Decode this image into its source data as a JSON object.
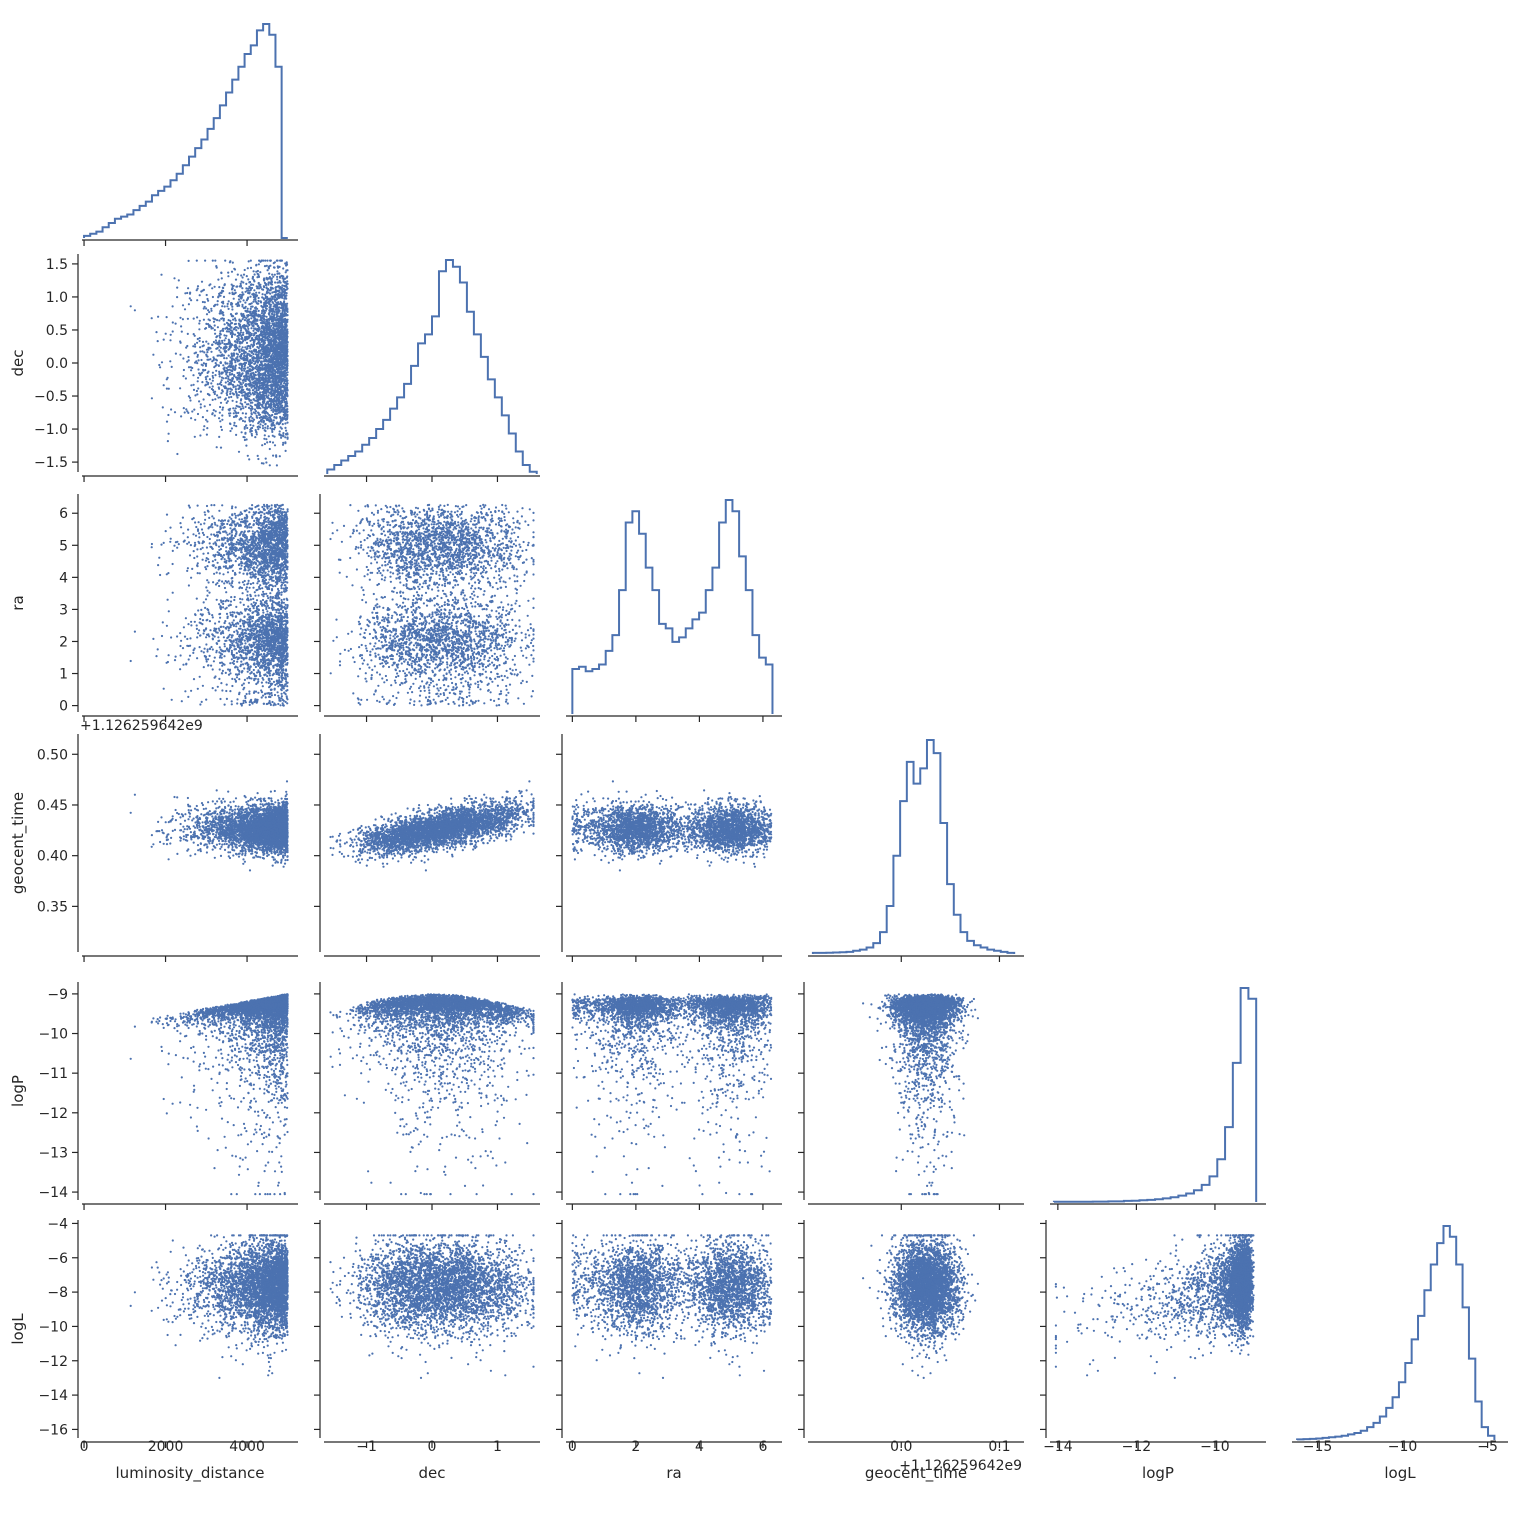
{
  "chart_data": {
    "type": "scatter",
    "layout": "corner-pairplot",
    "grid": false,
    "colors": {
      "series": "#4c72b0",
      "axes": "#262626"
    },
    "variables": [
      {
        "name": "luminosity_distance",
        "label": "luminosity_distance",
        "lim": [
          -50,
          5250
        ],
        "ticks": [
          0,
          2000,
          4000
        ],
        "tick_labels": [
          "0",
          "2000",
          "4000"
        ]
      },
      {
        "name": "dec",
        "label": "dec",
        "lim": [
          -1.65,
          1.65
        ],
        "ticks": [
          -1.5,
          -1.0,
          -0.5,
          0.0,
          0.5,
          1.0,
          1.5
        ],
        "tick_labels": [
          "−1.5",
          "−1.0",
          "−0.5",
          "0.0",
          "0.5",
          "1.0",
          "1.5"
        ],
        "x_ticks": [
          -1,
          0,
          1
        ],
        "x_tick_labels": [
          "−1",
          "0",
          "1"
        ]
      },
      {
        "name": "ra",
        "label": "ra",
        "lim": [
          -0.2,
          6.6
        ],
        "ticks": [
          0,
          1,
          2,
          3,
          4,
          5,
          6
        ],
        "tick_labels": [
          "0",
          "1",
          "2",
          "3",
          "4",
          "5",
          "6"
        ],
        "x_ticks": [
          0,
          2,
          4,
          6
        ],
        "x_tick_labels": [
          "0",
          "2",
          "4",
          "6"
        ]
      },
      {
        "name": "geocent_time",
        "label": "geocent_time",
        "lim": [
          0.305,
          0.52
        ],
        "ticks": [
          0.35,
          0.4,
          0.45,
          0.5
        ],
        "tick_labels": [
          "0.35",
          "0.40",
          "0.45",
          "0.50"
        ],
        "offset_label": "+1.126259642e9",
        "x_lim": [
          -0.095,
          0.125
        ],
        "x_ticks": [
          0.0,
          0.1
        ],
        "x_tick_labels": [
          "0.0",
          "0.1"
        ],
        "x_offset_label": "+1.126259642e9"
      },
      {
        "name": "logP",
        "label": "logP",
        "lim": [
          -14.2,
          -8.7
        ],
        "ticks": [
          -14,
          -13,
          -12,
          -11,
          -10,
          -9
        ],
        "tick_labels": [
          "−14",
          "−13",
          "−12",
          "−11",
          "−10",
          "−9"
        ],
        "x_ticks": [
          -14,
          -12,
          -10
        ],
        "x_tick_labels": [
          "−14",
          "−12",
          "−10"
        ]
      },
      {
        "name": "logL",
        "label": "logL",
        "lim": [
          -16.5,
          -3.8
        ],
        "ticks": [
          -16,
          -14,
          -12,
          -10,
          -8,
          -6,
          -4
        ],
        "tick_labels": [
          "−16",
          "−14",
          "−12",
          "−10",
          "−8",
          "−6",
          "−4"
        ],
        "x_ticks": [
          -15,
          -10,
          -5
        ],
        "x_tick_labels": [
          "−15",
          "−10",
          "−5"
        ]
      }
    ],
    "diagonal_histograms": [
      {
        "variable": "luminosity_distance",
        "bin_edges_range": [
          0,
          5000
        ],
        "shape": [
          1,
          2,
          3,
          5,
          7,
          9,
          10,
          11,
          13,
          15,
          17,
          20,
          22,
          24,
          27,
          30,
          34,
          38,
          42,
          46,
          51,
          56,
          62,
          68,
          74,
          80,
          86,
          90,
          97,
          100,
          95,
          80,
          0
        ]
      },
      {
        "variable": "dec",
        "bin_edges_range": [
          -1.6,
          1.6
        ],
        "shape": [
          2,
          4,
          6,
          8,
          10,
          13,
          16,
          20,
          24,
          29,
          34,
          40,
          48,
          58,
          62,
          70,
          90,
          95,
          92,
          85,
          72,
          62,
          52,
          42,
          34,
          26,
          18,
          10,
          4,
          1
        ]
      },
      {
        "variable": "ra",
        "bin_edges_range": [
          0,
          6.3
        ],
        "shape": [
          20,
          21,
          19,
          20,
          22,
          28,
          35,
          55,
          85,
          90,
          80,
          65,
          55,
          40,
          38,
          32,
          34,
          38,
          42,
          45,
          55,
          65,
          85,
          95,
          90,
          70,
          55,
          35,
          25,
          22
        ]
      },
      {
        "variable": "geocent_time",
        "bin_edges_range": [
          -0.09,
          0.115
        ],
        "shape": [
          0.5,
          0.5,
          0.6,
          0.7,
          0.8,
          1,
          1.5,
          2,
          3,
          5,
          10,
          22,
          45,
          70,
          88,
          78,
          85,
          98,
          92,
          60,
          32,
          18,
          10,
          6,
          4,
          3,
          2,
          1.5,
          1,
          0.5
        ]
      },
      {
        "variable": "logP",
        "bin_edges_range": [
          -14.1,
          -8.95
        ],
        "shape": [
          0.1,
          0.1,
          0.1,
          0.1,
          0.1,
          0.2,
          0.2,
          0.3,
          0.3,
          0.5,
          0.6,
          0.8,
          1,
          1.3,
          1.7,
          2.2,
          3,
          4,
          5.5,
          8,
          12,
          20,
          35,
          65,
          100,
          95
        ]
      },
      {
        "variable": "logL",
        "bin_edges_range": [
          -16.2,
          -4.6
        ],
        "shape": [
          0.3,
          0.4,
          0.5,
          0.7,
          1,
          1.3,
          1.6,
          2,
          2.6,
          3.3,
          4.3,
          6,
          8,
          11,
          15,
          20,
          27,
          36,
          47,
          58,
          70,
          82,
          92,
          100,
          95,
          82,
          62,
          38,
          18,
          6,
          2
        ]
      }
    ],
    "scatter_pairs": [
      [
        "luminosity_distance",
        "dec"
      ],
      [
        "luminosity_distance",
        "ra"
      ],
      [
        "dec",
        "ra"
      ],
      [
        "luminosity_distance",
        "geocent_time"
      ],
      [
        "dec",
        "geocent_time"
      ],
      [
        "ra",
        "geocent_time"
      ],
      [
        "luminosity_distance",
        "logP"
      ],
      [
        "dec",
        "logP"
      ],
      [
        "ra",
        "logP"
      ],
      [
        "geocent_time",
        "logP"
      ],
      [
        "luminosity_distance",
        "logL"
      ],
      [
        "dec",
        "logL"
      ],
      [
        "ra",
        "logL"
      ],
      [
        "geocent_time",
        "logL"
      ],
      [
        "logP",
        "logL"
      ]
    ],
    "marker": {
      "style": "dot",
      "size": "small"
    }
  }
}
